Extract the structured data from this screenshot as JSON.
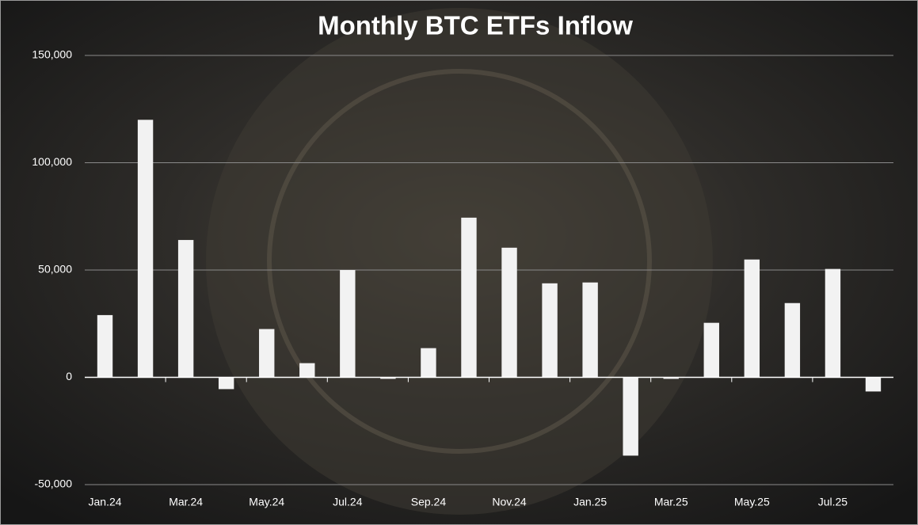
{
  "chart_data": {
    "type": "bar",
    "title": "Monthly BTC ETFs Inflow",
    "categories": [
      "Jan.24",
      null,
      "Mar.24",
      null,
      "May.24",
      null,
      "Jul.24",
      null,
      "Sep.24",
      null,
      "Nov.24",
      null,
      "Jan.25",
      null,
      "Mar.25",
      null,
      "May.25",
      null,
      "Jul.25",
      null
    ],
    "values": [
      29000,
      120000,
      64000,
      -5500,
      22500,
      6600,
      50000,
      -700,
      13600,
      74400,
      60400,
      43800,
      44200,
      -36500,
      -700,
      25400,
      54900,
      34600,
      50500,
      -6600
    ],
    "color": "#f2f2f2",
    "ylim": [
      -50000,
      150000
    ],
    "yticks": [
      {
        "value": -50000,
        "label": "-50,000"
      },
      0,
      {
        "value": 50000,
        "label": "50,000"
      },
      {
        "value": 100000,
        "label": "100,000"
      },
      {
        "value": 150000,
        "label": "150,000"
      }
    ],
    "grid": true
  }
}
